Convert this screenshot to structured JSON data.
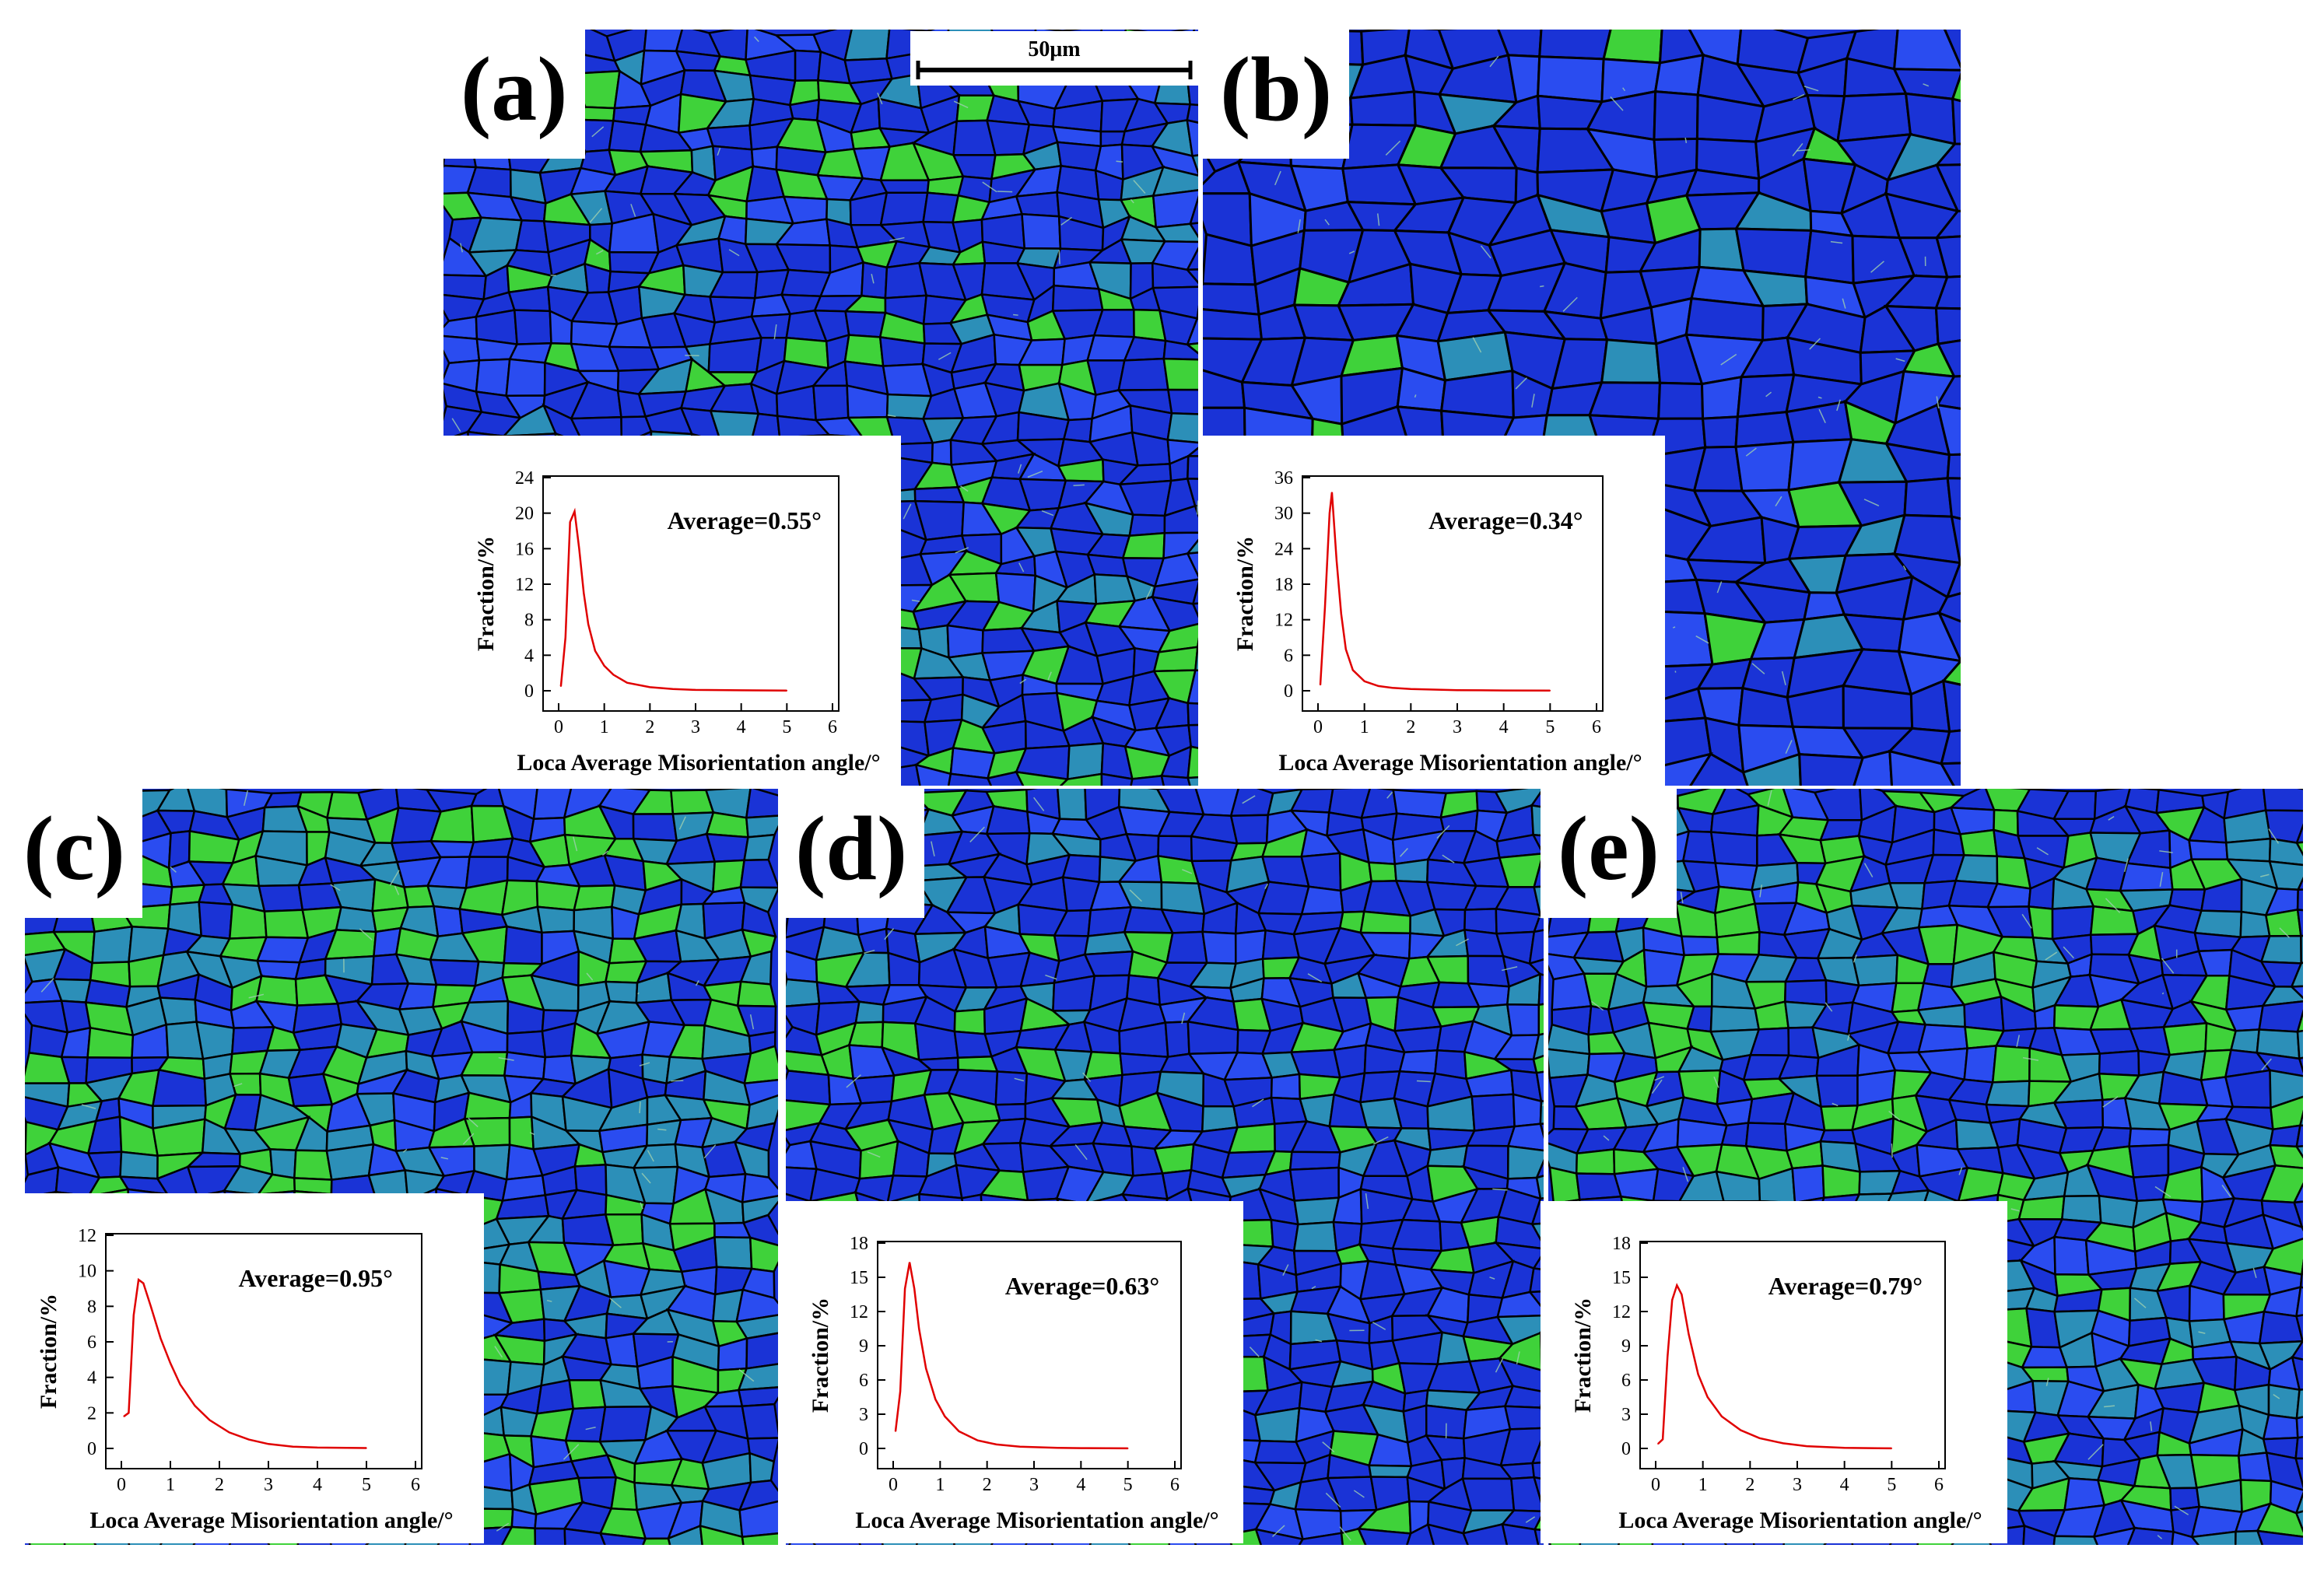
{
  "figure": {
    "scale_bar": "50μm"
  },
  "colors": {
    "map_blue": "#1a33d6",
    "map_green": "#3fd23a",
    "boundary": "#000000",
    "lagb": "#9fd0b0",
    "curve": "#e00000"
  },
  "chart_data": [
    {
      "panel": "(a)",
      "type": "line",
      "annotation": "Average=0.55°",
      "xlabel": "Loca Average Misorientation angle/°",
      "ylabel": "Fraction/%",
      "xlim": [
        0,
        6
      ],
      "ylim": [
        0,
        24
      ],
      "xticks": [
        0,
        1,
        2,
        3,
        4,
        5,
        6
      ],
      "yticks": [
        0,
        4,
        8,
        12,
        16,
        20,
        24
      ],
      "x": [
        0.05,
        0.15,
        0.25,
        0.35,
        0.45,
        0.55,
        0.65,
        0.8,
        1.0,
        1.2,
        1.5,
        2.0,
        2.5,
        3.0,
        4.0,
        5.0
      ],
      "y": [
        0.5,
        6,
        19,
        20.2,
        16,
        11,
        7.5,
        4.5,
        2.8,
        1.8,
        0.9,
        0.4,
        0.2,
        0.1,
        0.05,
        0.02
      ]
    },
    {
      "panel": "(b)",
      "type": "line",
      "annotation": "Average=0.34°",
      "xlabel": "Loca Average Misorientation angle/°",
      "ylabel": "Fraction/%",
      "xlim": [
        0,
        6
      ],
      "ylim": [
        0,
        36
      ],
      "xticks": [
        0,
        1,
        2,
        3,
        4,
        5,
        6
      ],
      "yticks": [
        0,
        6,
        12,
        18,
        24,
        30,
        36
      ],
      "x": [
        0.05,
        0.15,
        0.25,
        0.3,
        0.4,
        0.5,
        0.6,
        0.75,
        1.0,
        1.3,
        1.6,
        2.0,
        3.0,
        4.0,
        5.0
      ],
      "y": [
        1,
        14,
        30,
        33.5,
        22,
        13,
        7,
        3.5,
        1.6,
        0.8,
        0.5,
        0.3,
        0.1,
        0.05,
        0.02
      ]
    },
    {
      "panel": "(c)",
      "type": "line",
      "annotation": "Average=0.95°",
      "xlabel": "Loca Average Misorientation angle/°",
      "ylabel": "Fraction/%",
      "xlim": [
        0,
        6
      ],
      "ylim": [
        0,
        12
      ],
      "xticks": [
        0,
        1,
        2,
        3,
        4,
        5,
        6
      ],
      "yticks": [
        0,
        2,
        4,
        6,
        8,
        10,
        12
      ],
      "x": [
        0.05,
        0.15,
        0.25,
        0.35,
        0.45,
        0.6,
        0.8,
        1.0,
        1.2,
        1.5,
        1.8,
        2.2,
        2.6,
        3.0,
        3.5,
        4.0,
        5.0
      ],
      "y": [
        1.8,
        2,
        7.5,
        9.5,
        9.3,
        8,
        6.2,
        4.8,
        3.6,
        2.4,
        1.6,
        0.9,
        0.5,
        0.25,
        0.1,
        0.05,
        0.02
      ]
    },
    {
      "panel": "(d)",
      "type": "line",
      "annotation": "Average=0.63°",
      "xlabel": "Loca Average Misorientation angle/°",
      "ylabel": "Fraction/%",
      "xlim": [
        0,
        6
      ],
      "ylim": [
        0,
        18
      ],
      "xticks": [
        0,
        1,
        2,
        3,
        4,
        5,
        6
      ],
      "yticks": [
        0,
        3,
        6,
        9,
        12,
        15,
        18
      ],
      "x": [
        0.05,
        0.15,
        0.25,
        0.35,
        0.45,
        0.55,
        0.7,
        0.9,
        1.1,
        1.4,
        1.8,
        2.2,
        2.7,
        3.5,
        4.0,
        5.0
      ],
      "y": [
        1.5,
        5,
        14,
        16.3,
        14,
        10.5,
        7,
        4.3,
        2.8,
        1.5,
        0.7,
        0.35,
        0.15,
        0.05,
        0.03,
        0.01
      ]
    },
    {
      "panel": "(e)",
      "type": "line",
      "annotation": "Average=0.79°",
      "xlabel": "Loca Average Misorientation angle/°",
      "ylabel": "Fraction/%",
      "xlim": [
        0,
        6
      ],
      "ylim": [
        0,
        18
      ],
      "xticks": [
        0,
        1,
        2,
        3,
        4,
        5,
        6
      ],
      "yticks": [
        0,
        3,
        6,
        9,
        12,
        15,
        18
      ],
      "x": [
        0.05,
        0.15,
        0.25,
        0.35,
        0.45,
        0.55,
        0.7,
        0.9,
        1.1,
        1.4,
        1.8,
        2.2,
        2.7,
        3.2,
        4.0,
        5.0
      ],
      "y": [
        0.4,
        0.8,
        8,
        13,
        14.3,
        13.5,
        10,
        6.5,
        4.5,
        2.8,
        1.6,
        0.9,
        0.45,
        0.2,
        0.05,
        0.01
      ]
    }
  ]
}
